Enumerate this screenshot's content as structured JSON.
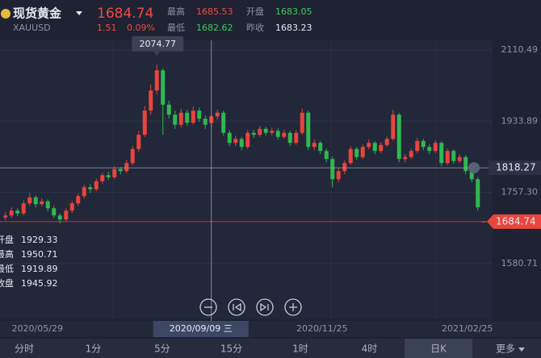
{
  "ui": {
    "title": "现货黄金",
    "symbol": "XAUUSD",
    "change": "1.51",
    "change_pct": "0.09%",
    "high_label": "最高",
    "open_label": "开盘",
    "low_label": "最低",
    "prev_label": "昨收",
    "prev_close": "1683.23",
    "panel_labels": [
      "开盘",
      "最高",
      "最低",
      "收盘"
    ],
    "tabs": [
      "分时",
      "1分",
      "5分",
      "15分",
      "1时",
      "4时",
      "日K",
      "更多"
    ]
  },
  "chart_data": {
    "type": "candlestick",
    "categories": [
      null,
      null,
      null,
      null,
      null,
      null,
      null,
      "2020/05/29",
      null,
      null,
      null,
      null,
      null,
      null,
      null,
      null,
      null,
      null,
      null,
      null,
      null,
      null,
      null,
      null,
      null,
      null,
      null,
      null,
      null,
      null,
      null,
      null,
      null,
      null,
      "2020/09/09 三",
      null,
      null,
      null,
      null,
      null,
      null,
      null,
      null,
      null,
      null,
      null,
      null,
      null,
      null,
      null,
      null,
      null,
      null,
      null,
      "2020/11/25",
      null,
      null,
      null,
      null,
      null,
      null,
      null,
      null,
      null,
      null,
      null,
      null,
      null,
      null,
      null,
      null,
      null,
      null,
      null,
      null,
      null,
      null,
      null,
      "2021/02/25",
      null
    ],
    "open": [
      1695,
      1700,
      1712,
      1705,
      1730,
      1745,
      1728,
      1735,
      1718,
      1700,
      1690,
      1712,
      1730,
      1748,
      1770,
      1765,
      1785,
      1800,
      1795,
      1815,
      1810,
      1830,
      1865,
      1900,
      1960,
      2010,
      2060,
      1975,
      1950,
      1925,
      1955,
      1930,
      1960,
      1940,
      1929.33,
      1945.92,
      1955,
      1905,
      1880,
      1890,
      1870,
      1905,
      1900,
      1915,
      1905,
      1910,
      1895,
      1905,
      1880,
      1905,
      1955,
      1870,
      1880,
      1860,
      1840,
      1790,
      1810,
      1830,
      1865,
      1845,
      1870,
      1880,
      1860,
      1875,
      1890,
      1950,
      1840,
      1845,
      1860,
      1885,
      1870,
      1860,
      1880,
      1830,
      1860,
      1835,
      1845,
      1810,
      1790,
      1683.05
    ],
    "high": [
      1708,
      1720,
      1718,
      1738,
      1756,
      1750,
      1742,
      1740,
      1724,
      1706,
      1718,
      1736,
      1754,
      1776,
      1778,
      1792,
      1806,
      1808,
      1822,
      1820,
      1838,
      1872,
      1910,
      1972,
      2025,
      2074.77,
      2065,
      1985,
      1960,
      1965,
      1962,
      1970,
      1968,
      1948,
      1950.71,
      1962,
      1960,
      1912,
      1898,
      1895,
      1912,
      1912,
      1922,
      1920,
      1918,
      1916,
      1912,
      1910,
      1912,
      1965,
      1960,
      1888,
      1885,
      1866,
      1846,
      1818,
      1836,
      1872,
      1870,
      1876,
      1888,
      1884,
      1882,
      1896,
      1962,
      1955,
      1852,
      1866,
      1892,
      1890,
      1876,
      1886,
      1884,
      1866,
      1864,
      1852,
      1850,
      1815,
      1795,
      1685.53
    ],
    "low": [
      1688,
      1694,
      1698,
      1700,
      1724,
      1720,
      1722,
      1710,
      1694,
      1680,
      1686,
      1706,
      1724,
      1742,
      1756,
      1760,
      1778,
      1788,
      1790,
      1802,
      1805,
      1825,
      1858,
      1895,
      1950,
      2000,
      1900,
      1940,
      1915,
      1918,
      1922,
      1925,
      1932,
      1915,
      1919.89,
      1938,
      1898,
      1872,
      1872,
      1862,
      1865,
      1892,
      1895,
      1898,
      1898,
      1888,
      1890,
      1872,
      1875,
      1900,
      1862,
      1862,
      1852,
      1832,
      1770,
      1782,
      1802,
      1825,
      1838,
      1840,
      1864,
      1852,
      1855,
      1870,
      1885,
      1832,
      1832,
      1840,
      1855,
      1862,
      1852,
      1855,
      1822,
      1825,
      1828,
      1830,
      1802,
      1782,
      1712,
      1682.62
    ],
    "close": [
      1700,
      1712,
      1705,
      1730,
      1745,
      1728,
      1735,
      1718,
      1700,
      1690,
      1712,
      1730,
      1748,
      1770,
      1765,
      1785,
      1800,
      1795,
      1815,
      1810,
      1830,
      1865,
      1900,
      1960,
      2010,
      2060,
      1975,
      1950,
      1925,
      1955,
      1930,
      1960,
      1940,
      1925,
      1945.92,
      1955,
      1905,
      1880,
      1890,
      1870,
      1905,
      1900,
      1915,
      1905,
      1910,
      1895,
      1905,
      1880,
      1905,
      1955,
      1870,
      1880,
      1860,
      1840,
      1790,
      1810,
      1830,
      1865,
      1845,
      1870,
      1880,
      1860,
      1875,
      1890,
      1950,
      1840,
      1845,
      1860,
      1885,
      1870,
      1860,
      1880,
      1830,
      1860,
      1835,
      1845,
      1810,
      1790,
      1720,
      1684.74
    ],
    "up_color": "#e8453c",
    "down_color": "#2fb84f",
    "ylim": [
      1444.49,
      2134.49
    ],
    "yticks": [
      1580.71,
      {
        "value": 1757.3,
        "label": "1757.30"
      },
      1933.89,
      2110.49
    ],
    "grid": true,
    "selected": 34,
    "crosshair_value": 1818.27
  }
}
